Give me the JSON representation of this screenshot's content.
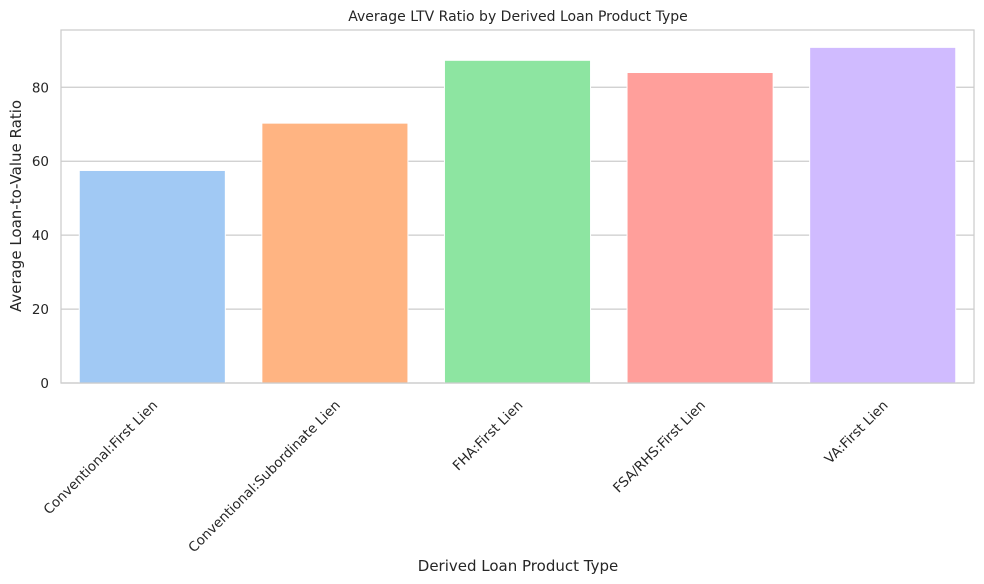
{
  "chart_data": {
    "type": "bar",
    "title": "Average LTV Ratio by Derived Loan Product Type",
    "xlabel": "Derived Loan Product Type",
    "ylabel": "Average Loan-to-Value Ratio",
    "categories": [
      "Conventional:First Lien",
      "Conventional:Subordinate Lien",
      "FHA:First Lien",
      "FSA/RHS:First Lien",
      "VA:First Lien"
    ],
    "values": [
      57.5,
      70.3,
      87.3,
      84.0,
      90.8
    ],
    "colors": [
      "#a1c9f4",
      "#ffb482",
      "#8de5a1",
      "#ff9f9b",
      "#d0bbff"
    ],
    "ylim": [
      0,
      95.5
    ],
    "yticks": [
      0,
      20,
      40,
      60,
      80
    ],
    "grid": true,
    "legend": "none"
  }
}
